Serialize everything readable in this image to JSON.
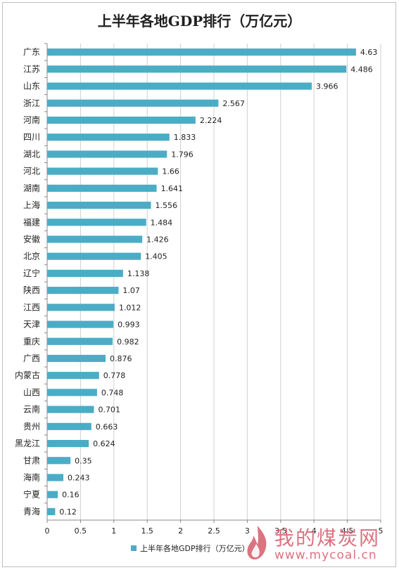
{
  "chart_data": {
    "type": "bar",
    "orientation": "horizontal",
    "title": "上半年各地GDP排行（万亿元）",
    "categories": [
      "广东",
      "江苏",
      "山东",
      "浙江",
      "河南",
      "四川",
      "湖北",
      "河北",
      "湖南",
      "上海",
      "福建",
      "安徽",
      "北京",
      "辽宁",
      "陕西",
      "江西",
      "天津",
      "重庆",
      "广西",
      "内蒙古",
      "山西",
      "云南",
      "贵州",
      "黑龙江",
      "甘肃",
      "海南",
      "宁夏",
      "青海"
    ],
    "series": [
      {
        "name": "上半年各地GDP排行（万亿元）",
        "values": [
          4.63,
          4.486,
          3.966,
          2.567,
          2.224,
          1.833,
          1.796,
          1.66,
          1.641,
          1.556,
          1.484,
          1.426,
          1.405,
          1.138,
          1.07,
          1.012,
          0.993,
          0.982,
          0.876,
          0.778,
          0.748,
          0.701,
          0.663,
          0.624,
          0.35,
          0.243,
          0.16,
          0.12
        ],
        "data_labels": [
          "4.63",
          "4.486",
          "3.966",
          "2.567",
          "2.224",
          "1.833",
          "1.796",
          "1.66",
          "1.641",
          "1.556",
          "1.484",
          "1.426",
          "1.405",
          "1.138",
          "1.07",
          "1.012",
          "0.993",
          "0.982",
          "0.876",
          "0.778",
          "0.748",
          "0.701",
          "0.663",
          "0.624",
          "0.35",
          "0.243",
          "0.16",
          "0.12"
        ]
      }
    ],
    "xlim": [
      0,
      5
    ],
    "x_ticks": [
      "0",
      "0.5",
      "1",
      "1.5",
      "2",
      "2.5",
      "3",
      "3.5",
      "4",
      "4.5",
      "5"
    ],
    "grid": "vertical",
    "legend": "bottom",
    "bar_color": "#4bacc6"
  },
  "watermark": {
    "text": "我的煤炭网",
    "url": "www.mycoal.cn"
  }
}
